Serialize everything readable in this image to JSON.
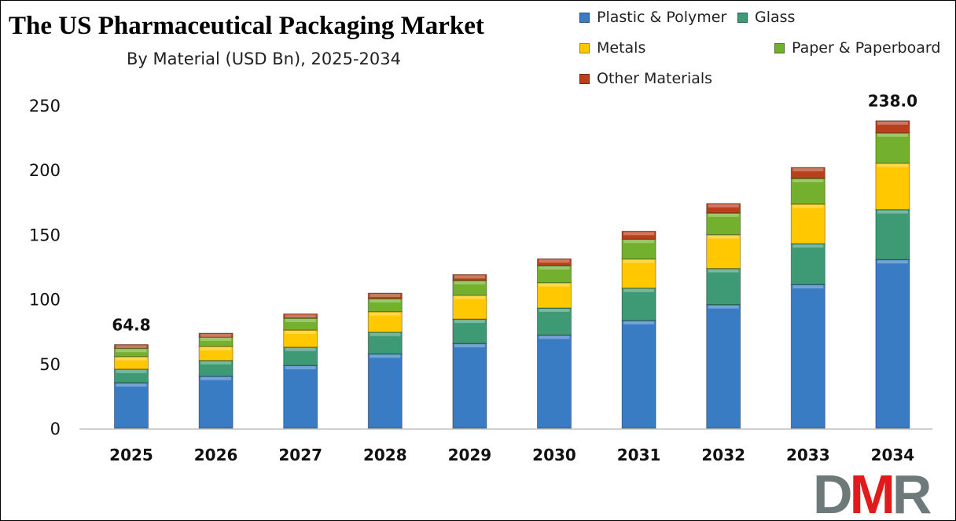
{
  "chart_data": {
    "type": "bar",
    "stacked": true,
    "title": "The US Pharmaceutical Packaging Market",
    "subtitle": "By Material (USD Bn), 2025-2034",
    "xlabel": "",
    "ylabel": "",
    "categories": [
      "2025",
      "2026",
      "2027",
      "2028",
      "2029",
      "2030",
      "2031",
      "2032",
      "2033",
      "2034"
    ],
    "ylim": [
      0,
      250
    ],
    "yticks": [
      0,
      50,
      100,
      150,
      200,
      250
    ],
    "grid": false,
    "legend_position": "top-right",
    "series": [
      {
        "name": "Plastic & Polymer",
        "color": "#3a7cc4",
        "values": [
          35.3,
          40.3,
          48.7,
          57.6,
          65.7,
          72.2,
          83.5,
          95.7,
          111.3,
          130.6
        ]
      },
      {
        "name": "Glass",
        "color": "#3d9a74",
        "values": [
          10.5,
          12.2,
          14.1,
          16.8,
          18.8,
          20.9,
          25.0,
          28.0,
          31.6,
          38.7
        ]
      },
      {
        "name": "Metals",
        "color": "#ffc800",
        "values": [
          9.7,
          10.9,
          13.2,
          15.8,
          18.5,
          19.6,
          22.5,
          26.1,
          30.6,
          35.9
        ]
      },
      {
        "name": "Paper & Paperboard",
        "color": "#72b02e",
        "values": [
          6.4,
          7.2,
          9.2,
          10.2,
          11.4,
          13.2,
          15.4,
          16.9,
          19.9,
          23.5
        ]
      },
      {
        "name": "Other Materials",
        "color": "#b8401c",
        "values": [
          2.9,
          3.0,
          3.4,
          4.2,
          4.6,
          5.3,
          6.1,
          7.3,
          8.5,
          9.3
        ]
      }
    ],
    "data_labels": [
      {
        "category": "2025",
        "text": "64.8"
      },
      {
        "category": "2034",
        "text": "238.0"
      }
    ]
  },
  "logo": {
    "text": "DMR",
    "parts": [
      "D",
      "M",
      "R"
    ],
    "colors": [
      "#6e7a79",
      "#e11b1b",
      "#6e7a79"
    ]
  }
}
